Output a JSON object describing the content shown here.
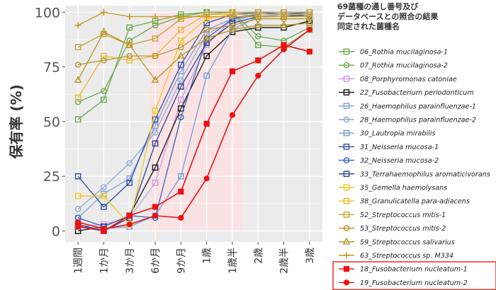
{
  "chart_data": {
    "type": "line",
    "title": "",
    "xlabel": "",
    "ylabel": "保有率 (%)",
    "ylim": [
      0,
      100
    ],
    "yticks": [
      0,
      25,
      50,
      75,
      100
    ],
    "categories": [
      "1週間",
      "1か月",
      "3か月",
      "6か月",
      "9か月",
      "1歳",
      "1歳半",
      "2歳",
      "2歳半",
      "3歳"
    ],
    "grid": true,
    "background": "#ebebeb",
    "shaded_region": {
      "from": "6か月",
      "to": "1歳半",
      "color": "#fde0e2"
    },
    "legend": {
      "title_lines": [
        "69菌種の通し番号及び",
        "データベースとの照合の結果",
        "同定された菌種名"
      ],
      "placement": "right"
    },
    "series": [
      {
        "name": "06_Rothia mucilaginosa-1",
        "color": "#6aaa4a",
        "marker": "square-open",
        "values": [
          51,
          60,
          93,
          96,
          99,
          100,
          100,
          85,
          84,
          92
        ]
      },
      {
        "name": "07_Rothia mucilaginosa-2",
        "color": "#6aaa4a",
        "marker": "circle-open",
        "values": [
          59,
          64,
          87,
          94,
          98,
          100,
          100,
          89,
          87,
          93
        ]
      },
      {
        "name": "08_Porphyromonas catoniae",
        "color": "#cc99e6",
        "marker": "square-open",
        "values": [
          2,
          3,
          6,
          22,
          60,
          85,
          97,
          100,
          100,
          99
        ]
      },
      {
        "name": "22_Fusobacterium periodonticum",
        "color": "#111111",
        "marker": "square-open",
        "values": [
          0,
          2,
          7,
          29,
          56,
          80,
          91,
          93,
          93,
          96
        ]
      },
      {
        "name": "26_Haemophilus parainfluenzae-1",
        "color": "#7f9fd8",
        "marker": "square-open",
        "values": [
          6,
          17,
          24,
          48,
          73,
          92,
          97,
          100,
          100,
          99
        ]
      },
      {
        "name": "28_Haemophilus parainfluenzae-2",
        "color": "#8ea7d8",
        "marker": "circle-open",
        "values": [
          10,
          20,
          31,
          45,
          69,
          90,
          96,
          99,
          99,
          99
        ]
      },
      {
        "name": "30_Lautropia mirabilis",
        "color": "#6f9bdb",
        "marker": "square-open",
        "values": [
          2,
          1,
          2,
          7,
          25,
          71,
          92,
          98,
          99,
          98
        ]
      },
      {
        "name": "31_Neisseria mucosa-1",
        "color": "#2d4fa8",
        "marker": "square-open",
        "values": [
          25,
          11,
          22,
          51,
          76,
          95,
          99,
          100,
          99,
          100
        ]
      },
      {
        "name": "32_Neisseria mucosa-2",
        "color": "#3860b8",
        "marker": "circle-open",
        "values": [
          6,
          2,
          7,
          6,
          52,
          88,
          97,
          99,
          99,
          99
        ]
      },
      {
        "name": "33_Terrahaemophilus aromaticivorans",
        "color": "#2a3f8f",
        "marker": "square-open",
        "values": [
          3,
          0,
          6,
          40,
          66,
          86,
          95,
          98,
          98,
          99
        ]
      },
      {
        "name": "35_Gemella haemolysans",
        "color": "#f5c518",
        "marker": "square-open",
        "values": [
          16,
          16,
          3,
          55,
          87,
          97,
          99,
          99,
          99,
          99
        ]
      },
      {
        "name": "38_Granulicatella para-adiacens",
        "color": "#e8b830",
        "marker": "square-open",
        "values": [
          61,
          80,
          78,
          80,
          92,
          99,
          99,
          99,
          99,
          99
        ]
      },
      {
        "name": "52_Streptococcus mitis-1",
        "color": "#c9a030",
        "marker": "square-open",
        "values": [
          84,
          90,
          85,
          88,
          97,
          99,
          100,
          100,
          100,
          100
        ]
      },
      {
        "name": "53_Streptococcus mitis-2",
        "color": "#b8942a",
        "marker": "circle-open",
        "values": [
          76,
          78,
          80,
          80,
          84,
          92,
          94,
          97,
          97,
          97
        ]
      },
      {
        "name": "59_Streptococcus salivarius",
        "color": "#b8961e",
        "marker": "triangle-open",
        "values": [
          69,
          91,
          85,
          69,
          80,
          88,
          92,
          94,
          94,
          95
        ]
      },
      {
        "name": "63_Streptococcus sp. M334",
        "color": "#c49a1e",
        "marker": "plus",
        "values": [
          94,
          100,
          98,
          98,
          98,
          98,
          98,
          98,
          98,
          98
        ]
      },
      {
        "name": "18_Fusobacterium nucleatum-1",
        "color": "#ee1111",
        "marker": "square-filled",
        "values": [
          2,
          0,
          7,
          11,
          18,
          49,
          73,
          78,
          85,
          82
        ]
      },
      {
        "name": "19_Fusobacterium nucleatum-2",
        "color": "#ee1111",
        "marker": "circle-filled",
        "values": [
          4,
          1,
          3,
          7,
          6,
          24,
          53,
          71,
          83,
          92
        ]
      }
    ],
    "highlighted_series": [
      "18_Fusobacterium nucleatum-1",
      "19_Fusobacterium nucleatum-2"
    ],
    "highlight_color": "#e53935"
  }
}
